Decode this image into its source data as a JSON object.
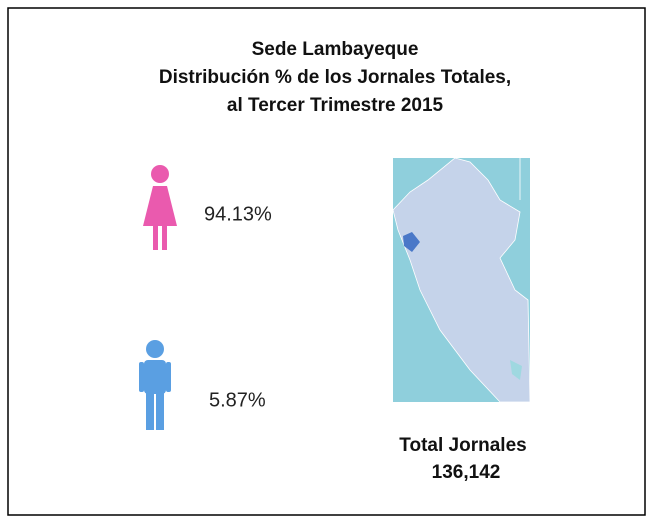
{
  "header": {
    "title": [
      "Sede Lambayeque",
      "Distribución % de los Jornales Totales,",
      "al Tercer Trimestre 2015"
    ]
  },
  "items": [
    {
      "label": "94.13%"
    },
    {
      "label": "5.87%"
    }
  ],
  "total": {
    "label": "Total Jornales",
    "value": "136,142"
  }
}
